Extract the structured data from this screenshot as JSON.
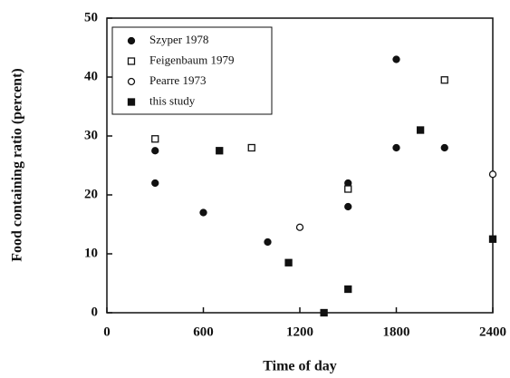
{
  "chart_data": {
    "type": "scatter",
    "xlabel": "Time of day",
    "ylabel": "Food containing ratio (percent)",
    "xlim": [
      0,
      2400
    ],
    "xticks": [
      0,
      600,
      1200,
      1800,
      2400
    ],
    "ylim": [
      0,
      50
    ],
    "yticks": [
      0,
      10,
      20,
      30,
      40,
      50
    ],
    "legend": "upper left",
    "series": [
      {
        "name": "Szyper 1978",
        "marker": "filled-circle",
        "color": "#111111",
        "x": [
          300,
          300,
          600,
          1000,
          1500,
          1500,
          1800,
          1800,
          2100
        ],
        "values": [
          27.5,
          22,
          17,
          12,
          22,
          18,
          43,
          28,
          28
        ]
      },
      {
        "name": "Feigenbaum 1979",
        "marker": "open-square",
        "color": "#111111",
        "x": [
          300,
          900,
          1500,
          2100
        ],
        "values": [
          29.5,
          28,
          21,
          39.5
        ]
      },
      {
        "name": "Pearre 1973",
        "marker": "open-circle",
        "color": "#111111",
        "x": [
          1200,
          2400
        ],
        "values": [
          14.5,
          23.5
        ]
      },
      {
        "name": "this study",
        "marker": "filled-square",
        "color": "#111111",
        "x": [
          700,
          1130,
          1350,
          1500,
          1950,
          2400
        ],
        "values": [
          27.5,
          8.5,
          0,
          4,
          31,
          12.5
        ]
      }
    ]
  }
}
